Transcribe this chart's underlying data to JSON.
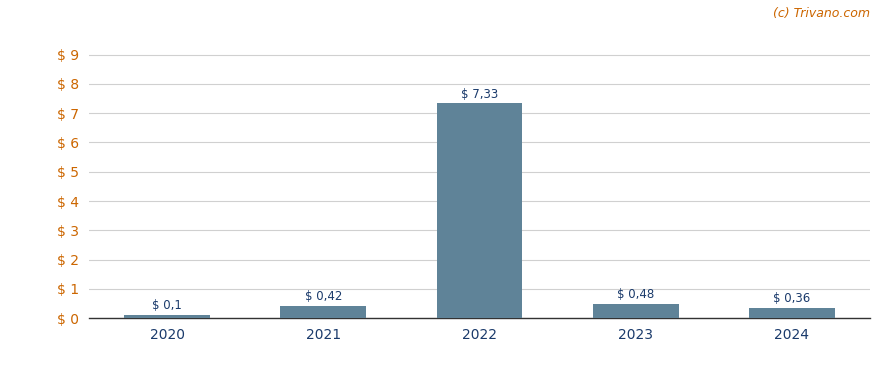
{
  "categories": [
    "2020",
    "2021",
    "2022",
    "2023",
    "2024"
  ],
  "values": [
    0.1,
    0.42,
    7.33,
    0.48,
    0.36
  ],
  "labels": [
    "$ 0,1",
    "$ 0,42",
    "$ 7,33",
    "$ 0,48",
    "$ 0,36"
  ],
  "bar_color": "#5f8398",
  "background_color": "#ffffff",
  "yticks": [
    0,
    1,
    2,
    3,
    4,
    5,
    6,
    7,
    8,
    9
  ],
  "ylim": [
    0,
    9.6
  ],
  "grid_color": "#d0d0d0",
  "watermark": "(c) Trivano.com",
  "watermark_color": "#cc6600",
  "label_color": "#1a3a6b",
  "tick_color": "#1a3a6b",
  "ytick_color": "#cc6600"
}
